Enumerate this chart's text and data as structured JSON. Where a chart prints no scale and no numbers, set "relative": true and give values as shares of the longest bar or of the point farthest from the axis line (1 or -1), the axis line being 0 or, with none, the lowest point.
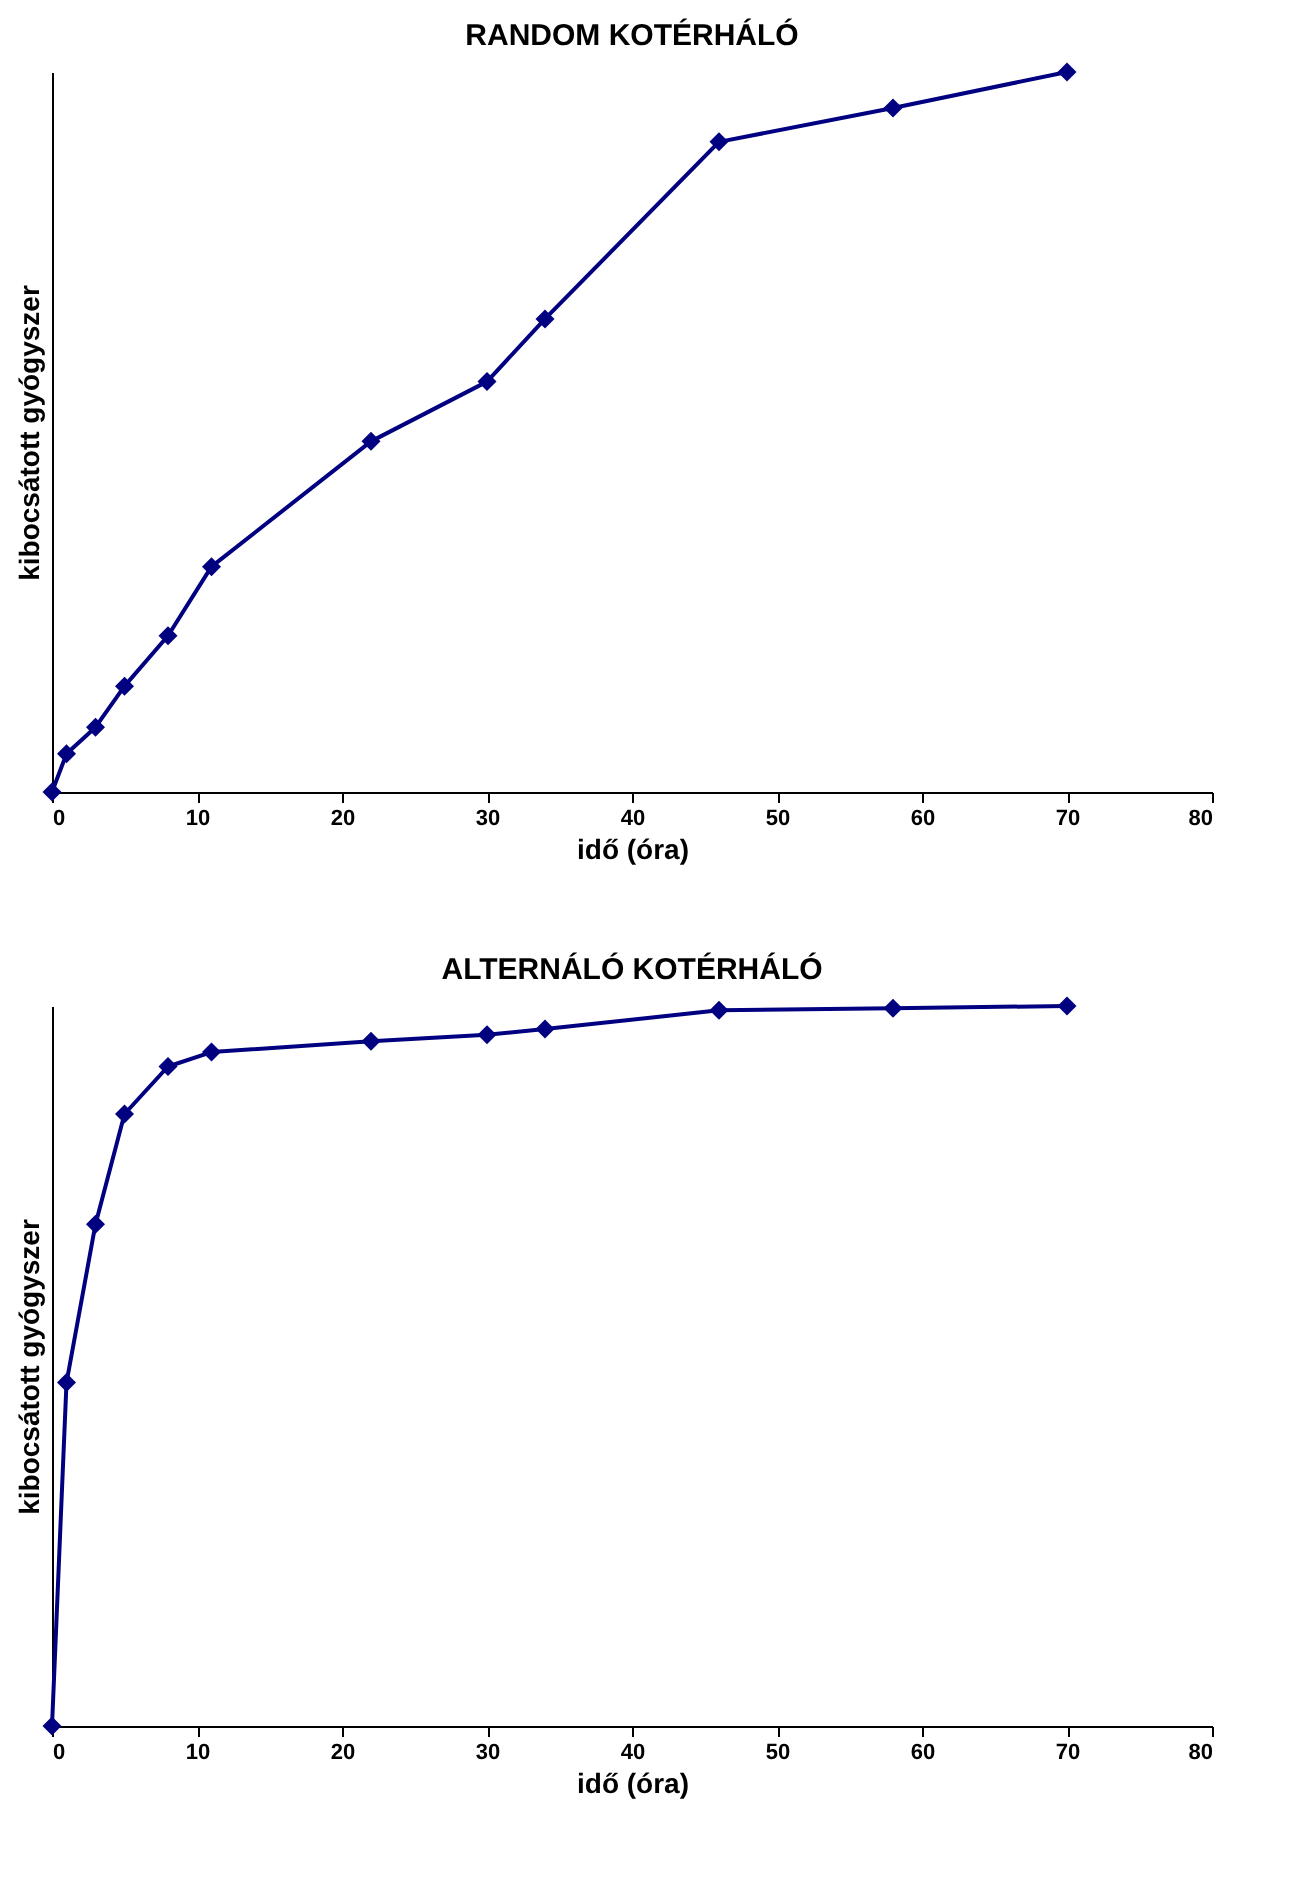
{
  "chart_data": [
    {
      "type": "line",
      "title": "RANDOM   KOTÉRHÁLÓ",
      "xlabel": "idő (óra)",
      "ylabel": "kibocsátott gyógyszer",
      "relative": true,
      "marker": "diamond",
      "line_style": "solid",
      "grid": false,
      "x": [
        0,
        1,
        3,
        5,
        8,
        11,
        22,
        30,
        34,
        46,
        58,
        70
      ],
      "xlim": [
        0,
        80
      ],
      "xticks": [
        0,
        10,
        20,
        30,
        40,
        50,
        60,
        70,
        80
      ],
      "series": [
        {
          "color": "#000080",
          "values": [
            0,
            0.053,
            0.09,
            0.147,
            0.217,
            0.313,
            0.487,
            0.57,
            0.657,
            0.903,
            0.95,
            1
          ]
        }
      ]
    },
    {
      "type": "line",
      "title": "ALTERNÁLÓ  KOTÉRHÁLÓ",
      "xlabel": "idő (óra)",
      "ylabel": "kibocsátott gyógyszer",
      "relative": true,
      "marker": "diamond",
      "line_style": "solid",
      "grid": false,
      "x": [
        0,
        1,
        3,
        5,
        8,
        11,
        22,
        30,
        34,
        46,
        58,
        70
      ],
      "xlim": [
        0,
        80
      ],
      "xticks": [
        0,
        10,
        20,
        30,
        40,
        50,
        60,
        70,
        80
      ],
      "series": [
        {
          "color": "#000080",
          "values": [
            0,
            0.477,
            0.697,
            0.85,
            0.916,
            0.936,
            0.951,
            0.96,
            0.968,
            0.994,
            0.997,
            1
          ]
        }
      ]
    }
  ]
}
